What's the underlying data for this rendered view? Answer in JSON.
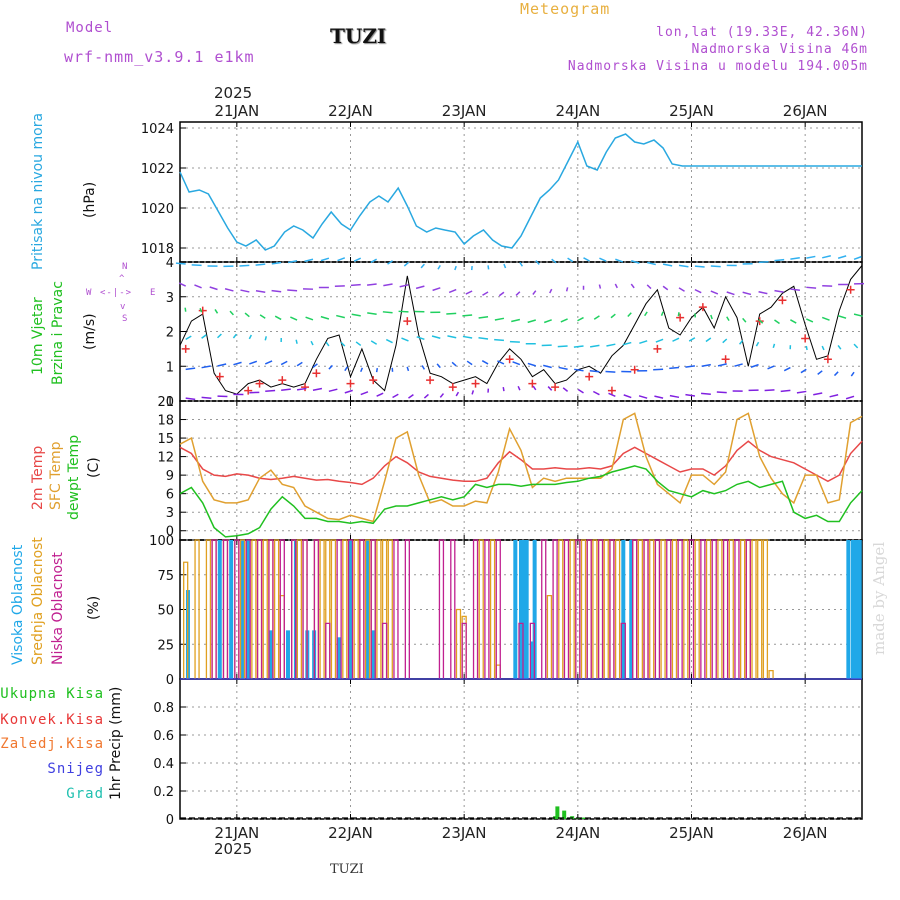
{
  "header": {
    "model_label": "Model",
    "model_name": "wrf-nmm_v3.9.1 e1km",
    "station": "TUZI",
    "product": "Meteogram",
    "lonlat": "lon,lat (19.33E, 42.36N)",
    "altitude": "Nadmorska Visina 46m",
    "model_altitude": "Nadmorska Visina u modelu 194.005m",
    "footer_station": "TUZI",
    "watermark": "made by Angel",
    "year": "2025"
  },
  "labels": {
    "pressure": "Pritisak na nivou mora",
    "pressure_unit": "(hPa)",
    "wind_1": "10m Vjetar",
    "wind_2": "Brzina i Pravac",
    "wind_unit": "(m/s)",
    "wind_compass_n": "N",
    "wind_compass_s": "S",
    "wind_compass_w": "W",
    "wind_compass_e": "E",
    "temp_2m": "2m Temp",
    "temp_sfc": "SFC Temp",
    "temp_dew": "dewpt Temp",
    "temp_unit": "(C)",
    "cloud_high": "Visoka Oblacnost",
    "cloud_mid": "Srednja Oblacnost",
    "cloud_low": "Niska Oblacnost",
    "cloud_unit": "(%)",
    "precip_total": "Ukupna Kisa",
    "precip_conv": "Konvek.Kisa",
    "precip_ice": "Zaledj.Kisa",
    "precip_snow": "Snijeg",
    "precip_hail": "Grad",
    "precip_axis": "1hr Precip (mm)"
  },
  "colors": {
    "pressure": "#29a8e0",
    "wind_speed": "#000000",
    "wind_gust": "#e83030",
    "temp_2m": "#e84848",
    "temp_sfc": "#e0a030",
    "temp_dew": "#20c020",
    "cloud_high": "#20a8e8",
    "cloud_mid": "#e0a020",
    "cloud_low": "#c02090",
    "precip_total": "#20c020",
    "precip_conv": "#e83838",
    "precip_ice": "#f07830",
    "precip_snow": "#4040e0",
    "precip_hail": "#20c0b0",
    "purple": "#b04fd0"
  },
  "chart_data": [
    {
      "type": "line",
      "name": "pressure",
      "xlabels": [
        "21JAN",
        "22JAN",
        "23JAN",
        "24JAN",
        "25JAN",
        "26JAN"
      ],
      "x_day_range": [
        -0.5,
        5.5
      ],
      "ylim": [
        1017.3,
        1024.3
      ],
      "yticks": [
        1018,
        1020,
        1022,
        1024
      ],
      "x": [
        -0.5,
        -0.42,
        -0.33,
        -0.25,
        -0.17,
        -0.08,
        0,
        0.08,
        0.17,
        0.25,
        0.33,
        0.42,
        0.5,
        0.58,
        0.67,
        0.75,
        0.83,
        0.92,
        1,
        1.08,
        1.17,
        1.25,
        1.33,
        1.42,
        1.5,
        1.58,
        1.67,
        1.75,
        1.83,
        1.92,
        2,
        2.08,
        2.17,
        2.25,
        2.33,
        2.42,
        2.5,
        2.58,
        2.67,
        2.75,
        2.83,
        2.92,
        3,
        3.08,
        3.17,
        3.25,
        3.33,
        3.42,
        3.5,
        3.58,
        3.67,
        3.75,
        3.83,
        3.92,
        4,
        4.08,
        4.17,
        4.25,
        4.33,
        4.42,
        4.5,
        4.58,
        4.67,
        4.75,
        4.83,
        4.92,
        5,
        5.08,
        5.17,
        5.25,
        5.33,
        5.42,
        5.5
      ],
      "y": [
        1021.8,
        1020.8,
        1020.9,
        1020.7,
        1019.9,
        1019.0,
        1018.3,
        1018.1,
        1018.4,
        1017.9,
        1018.1,
        1018.8,
        1019.1,
        1018.9,
        1018.5,
        1019.2,
        1019.8,
        1019.2,
        1018.9,
        1019.6,
        1020.3,
        1020.6,
        1020.3,
        1021.0,
        1020.1,
        1019.1,
        1018.8,
        1019.0,
        1018.9,
        1018.8,
        1018.2,
        1018.6,
        1018.9,
        1018.4,
        1018.1,
        1018.0,
        1018.6,
        1019.5,
        1020.5,
        1020.9,
        1021.4,
        1022.4,
        1023.3,
        1022.1,
        1021.9,
        1022.8,
        1023.5,
        1023.7,
        1023.3,
        1023.2,
        1023.4,
        1023.0,
        1022.2,
        1022.1,
        1022.1,
        1022.1,
        1022.1,
        1022.1,
        1022.1,
        1022.1,
        1022.1,
        1022.1,
        1022.1,
        1022.1,
        1022.1,
        1022.1,
        1022.1,
        1022.1,
        1022.1,
        1022.1,
        1022.1,
        1022.1,
        1022.1
      ]
    },
    {
      "type": "line",
      "name": "wind",
      "ylim": [
        0,
        4
      ],
      "yticks": [
        0,
        1,
        2,
        3,
        4
      ],
      "x": [
        -0.5,
        -0.4,
        -0.3,
        -0.2,
        -0.1,
        0,
        0.1,
        0.2,
        0.3,
        0.4,
        0.5,
        0.6,
        0.7,
        0.8,
        0.9,
        1,
        1.1,
        1.2,
        1.3,
        1.4,
        1.5,
        1.6,
        1.7,
        1.8,
        1.9,
        2,
        2.1,
        2.2,
        2.3,
        2.4,
        2.5,
        2.6,
        2.7,
        2.8,
        2.9,
        3,
        3.1,
        3.2,
        3.3,
        3.4,
        3.5,
        3.6,
        3.7,
        3.8,
        3.9,
        4,
        4.1,
        4.2,
        4.3,
        4.4,
        4.5,
        4.6,
        4.7,
        4.8,
        4.9,
        5,
        5.1,
        5.2,
        5.3,
        5.4,
        5.5
      ],
      "speed": [
        1.6,
        2.3,
        2.5,
        0.8,
        0.3,
        0.2,
        0.5,
        0.6,
        0.4,
        0.5,
        0.4,
        0.5,
        1.2,
        1.8,
        1.9,
        0.7,
        1.5,
        0.6,
        0.3,
        1.6,
        3.6,
        1.9,
        0.8,
        0.7,
        0.5,
        0.6,
        0.7,
        0.5,
        1.1,
        1.5,
        1.2,
        0.7,
        0.9,
        0.5,
        0.6,
        0.9,
        1.0,
        0.8,
        1.3,
        1.6,
        2.2,
        2.8,
        3.2,
        2.1,
        1.9,
        2.4,
        2.7,
        2.1,
        3.0,
        2.4,
        1.0,
        2.5,
        2.7,
        3.1,
        3.3,
        2.2,
        1.2,
        1.3,
        2.6,
        3.5,
        3.9
      ],
      "gust_x": [
        -0.45,
        -0.3,
        -0.15,
        0.1,
        0.2,
        0.4,
        0.6,
        0.7,
        1.0,
        1.2,
        1.5,
        1.7,
        1.9,
        2.1,
        2.4,
        2.6,
        2.8,
        3.1,
        3.3,
        3.5,
        3.7,
        3.9,
        4.1,
        4.3,
        4.6,
        4.8,
        5.0,
        5.2,
        5.4
      ],
      "gust": [
        1.5,
        2.6,
        0.7,
        0.3,
        0.5,
        0.6,
        0.4,
        0.8,
        0.5,
        0.6,
        2.3,
        0.6,
        0.4,
        0.5,
        1.2,
        0.5,
        0.4,
        0.7,
        0.3,
        0.9,
        1.5,
        2.4,
        2.7,
        1.2,
        2.3,
        2.9,
        1.8,
        1.2,
        3.2
      ]
    },
    {
      "type": "line",
      "name": "temperature",
      "ylim": [
        -1.5,
        21
      ],
      "yticks": [
        0,
        3,
        6,
        9,
        12,
        15,
        18,
        21
      ],
      "x": [
        -0.5,
        -0.4,
        -0.3,
        -0.2,
        -0.1,
        0,
        0.1,
        0.2,
        0.3,
        0.4,
        0.5,
        0.6,
        0.7,
        0.8,
        0.9,
        1,
        1.1,
        1.2,
        1.3,
        1.4,
        1.5,
        1.6,
        1.7,
        1.8,
        1.9,
        2,
        2.1,
        2.2,
        2.3,
        2.4,
        2.5,
        2.6,
        2.7,
        2.8,
        2.9,
        3,
        3.1,
        3.2,
        3.3,
        3.4,
        3.5,
        3.6,
        3.7,
        3.8,
        3.9,
        4,
        4.1,
        4.2,
        4.3,
        4.4,
        4.5,
        4.6,
        4.7,
        4.8,
        4.9,
        5,
        5.1,
        5.2,
        5.3,
        5.4,
        5.5
      ],
      "series": [
        {
          "name": "2m Temp",
          "values": [
            13.5,
            12.5,
            10.0,
            9.0,
            8.8,
            9.2,
            9.0,
            8.5,
            8.3,
            8.5,
            8.8,
            8.5,
            8.2,
            8.3,
            8.0,
            7.8,
            7.5,
            8.5,
            10.5,
            12.0,
            11.0,
            9.5,
            8.8,
            8.5,
            8.2,
            8.0,
            8.0,
            8.5,
            11.0,
            12.8,
            11.5,
            10.0,
            10.0,
            10.2,
            10.0,
            10.0,
            10.2,
            10.0,
            10.5,
            12.5,
            13.5,
            12.5,
            11.5,
            10.5,
            9.5,
            10.0,
            10.0,
            9.0,
            10.5,
            13.0,
            14.5,
            13.0,
            12.0,
            11.5,
            11.0,
            10.0,
            9.0,
            8.0,
            9.0,
            12.5,
            14.5
          ]
        },
        {
          "name": "SFC Temp",
          "values": [
            14.0,
            15.0,
            8.0,
            5.0,
            4.5,
            4.5,
            5.0,
            8.5,
            9.8,
            7.5,
            7.0,
            4.0,
            3.0,
            2.0,
            1.8,
            2.5,
            2.0,
            1.5,
            8.0,
            15.0,
            16.0,
            9.0,
            4.5,
            5.0,
            4.0,
            4.0,
            4.8,
            4.5,
            9.5,
            16.5,
            13.0,
            7.0,
            8.5,
            8.0,
            8.5,
            8.5,
            8.5,
            8.5,
            10.0,
            18.0,
            19.0,
            12.0,
            7.5,
            6.0,
            4.5,
            9.0,
            9.0,
            7.5,
            9.5,
            18.0,
            19.0,
            12.0,
            8.5,
            6.0,
            4.5,
            9.0,
            9.0,
            4.5,
            5.0,
            17.5,
            18.5
          ]
        },
        {
          "name": "dewpt Temp",
          "values": [
            6.0,
            7.0,
            4.5,
            0.5,
            -1.0,
            -0.8,
            -0.5,
            0.5,
            3.5,
            5.5,
            4.0,
            2.0,
            2.0,
            1.5,
            1.5,
            1.2,
            1.5,
            1.2,
            3.5,
            4.0,
            4.0,
            4.5,
            5.0,
            5.5,
            5.0,
            5.5,
            7.5,
            7.0,
            7.5,
            7.5,
            7.2,
            7.5,
            7.5,
            7.5,
            7.8,
            8.0,
            8.5,
            8.8,
            9.5,
            10.0,
            10.5,
            10.0,
            8.0,
            6.5,
            6.0,
            5.5,
            6.5,
            6.0,
            6.5,
            7.5,
            8.0,
            7.0,
            7.5,
            8.0,
            3.0,
            2.0,
            2.5,
            1.5,
            1.5,
            4.5,
            6.5
          ]
        }
      ]
    },
    {
      "type": "bar",
      "name": "cloud",
      "ylim": [
        0,
        100
      ],
      "yticks": [
        0,
        25,
        50,
        75,
        100
      ],
      "series": [
        {
          "name": "Visoka Oblacnost",
          "x": [
            -0.43,
            -0.15,
            -0.05,
            0.05,
            0.1,
            0.3,
            0.45,
            0.52,
            0.62,
            0.68,
            0.9,
            1.0,
            1.15,
            1.2,
            2.45,
            2.5,
            2.52,
            2.55,
            2.6,
            2.62,
            3.4,
            3.47,
            5.38,
            5.42,
            5.45,
            5.48
          ],
          "values": [
            64,
            100,
            100,
            100,
            100,
            35,
            35,
            100,
            35,
            35,
            30,
            100,
            100,
            35,
            100,
            100,
            100,
            100,
            27,
            100,
            100,
            100,
            100,
            100,
            100,
            100
          ]
        },
        {
          "name": "Srednja Oblacnost",
          "x": [
            -0.45,
            -0.35,
            -0.25,
            -0.2,
            -0.1,
            0,
            0.05,
            0.15,
            0.2,
            0.25,
            0.3,
            0.35,
            0.4,
            0.5,
            0.55,
            0.6,
            0.7,
            0.75,
            0.8,
            0.85,
            0.95,
            1.05,
            1.1,
            1.15,
            1.2,
            1.25,
            1.3,
            1.35,
            1.95,
            2.0,
            2.15,
            2.25,
            2.3,
            2.75,
            2.85,
            2.95,
            3.0,
            3.05,
            3.1,
            3.15,
            3.2,
            3.25,
            3.3,
            3.35,
            3.5,
            3.55,
            3.6,
            3.65,
            3.75,
            3.85,
            3.95,
            4.05,
            4.15,
            4.25,
            4.35,
            4.45,
            4.5,
            4.55,
            4.6,
            4.65,
            4.7
          ],
          "values": [
            84,
            100,
            100,
            100,
            100,
            100,
            100,
            100,
            100,
            100,
            100,
            100,
            60,
            100,
            100,
            100,
            100,
            100,
            100,
            100,
            100,
            100,
            100,
            100,
            100,
            100,
            100,
            100,
            50,
            45,
            100,
            100,
            10,
            60,
            100,
            100,
            100,
            100,
            100,
            100,
            100,
            100,
            100,
            100,
            100,
            100,
            100,
            100,
            100,
            100,
            100,
            100,
            100,
            100,
            100,
            100,
            100,
            100,
            100,
            100,
            6
          ]
        },
        {
          "name": "Niska Oblacnost",
          "x": [
            -0.2,
            -0.1,
            0.0,
            0.1,
            0.2,
            0.3,
            0.4,
            0.5,
            0.6,
            0.7,
            0.8,
            0.9,
            1.0,
            1.1,
            1.2,
            1.3,
            1.4,
            1.5,
            1.8,
            1.9,
            2.0,
            2.1,
            2.2,
            2.3,
            2.5,
            2.6,
            2.7,
            2.8,
            2.9,
            3.0,
            3.1,
            3.2,
            3.3,
            3.4,
            3.5,
            3.6,
            3.7,
            3.8,
            3.9,
            4.0,
            4.1,
            4.2,
            4.3,
            4.4,
            4.5
          ],
          "values": [
            100,
            100,
            100,
            100,
            100,
            100,
            100,
            100,
            100,
            100,
            40,
            100,
            100,
            100,
            100,
            40,
            100,
            100,
            100,
            100,
            40,
            100,
            100,
            100,
            40,
            40,
            100,
            100,
            100,
            100,
            100,
            100,
            100,
            40,
            100,
            100,
            100,
            100,
            100,
            100,
            100,
            100,
            100,
            100,
            100
          ]
        }
      ]
    },
    {
      "type": "bar",
      "name": "precip",
      "ylim": [
        0,
        1.0
      ],
      "yticks": [
        0,
        0.2,
        0.4,
        0.6,
        0.8
      ],
      "series": [
        {
          "name": "Ukupna Kisa",
          "x": [
            2.8,
            2.82,
            2.88,
            2.95,
            3.0,
            3.05
          ],
          "values": [
            0.02,
            0.09,
            0.06,
            0.02,
            0.01,
            0.01
          ]
        }
      ]
    }
  ]
}
